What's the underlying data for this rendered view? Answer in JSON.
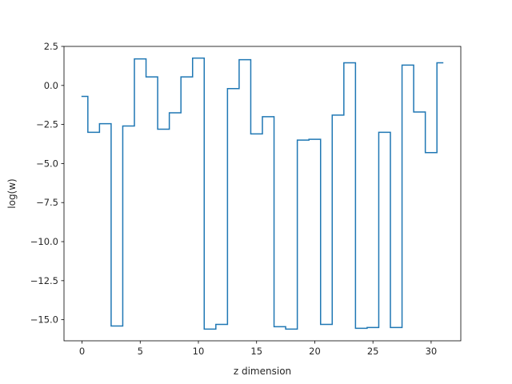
{
  "chart_data": {
    "type": "line",
    "drawstyle": "steps-mid",
    "title": "",
    "xlabel": "z dimension",
    "ylabel": "log(w)",
    "xlim": [
      -1.55,
      32.55
    ],
    "ylim": [
      -16.35,
      2.5
    ],
    "xticks": [
      0,
      5,
      10,
      15,
      20,
      25,
      30
    ],
    "yticks": [
      2.5,
      0.0,
      -2.5,
      -5.0,
      -7.5,
      -10.0,
      -12.5,
      -15.0
    ],
    "ytick_labels": [
      "2.5",
      "0.0",
      "−2.5",
      "−5.0",
      "−7.5",
      "−10.0",
      "−12.5",
      "−15.0"
    ],
    "grid": false,
    "legend": false,
    "line_color": "#1f77b4",
    "series": [
      {
        "x": [
          0,
          1,
          2,
          3,
          4,
          5,
          6,
          7,
          8,
          9,
          10,
          11,
          12,
          13,
          14,
          15,
          16,
          17,
          18,
          19,
          20,
          21,
          22,
          23,
          24,
          25,
          26,
          27,
          28,
          29,
          30,
          31
        ],
        "values": [
          -0.7,
          -3.0,
          -2.45,
          -15.4,
          -2.6,
          1.7,
          0.55,
          -2.8,
          -1.75,
          0.55,
          1.75,
          -15.6,
          -15.3,
          -0.2,
          1.65,
          -3.1,
          -2.0,
          -15.45,
          -15.6,
          -3.5,
          -3.45,
          -15.3,
          -1.9,
          1.45,
          -15.55,
          -15.5,
          -3.0,
          -15.5,
          1.3,
          -1.7,
          -4.3,
          1.45
        ]
      }
    ]
  }
}
